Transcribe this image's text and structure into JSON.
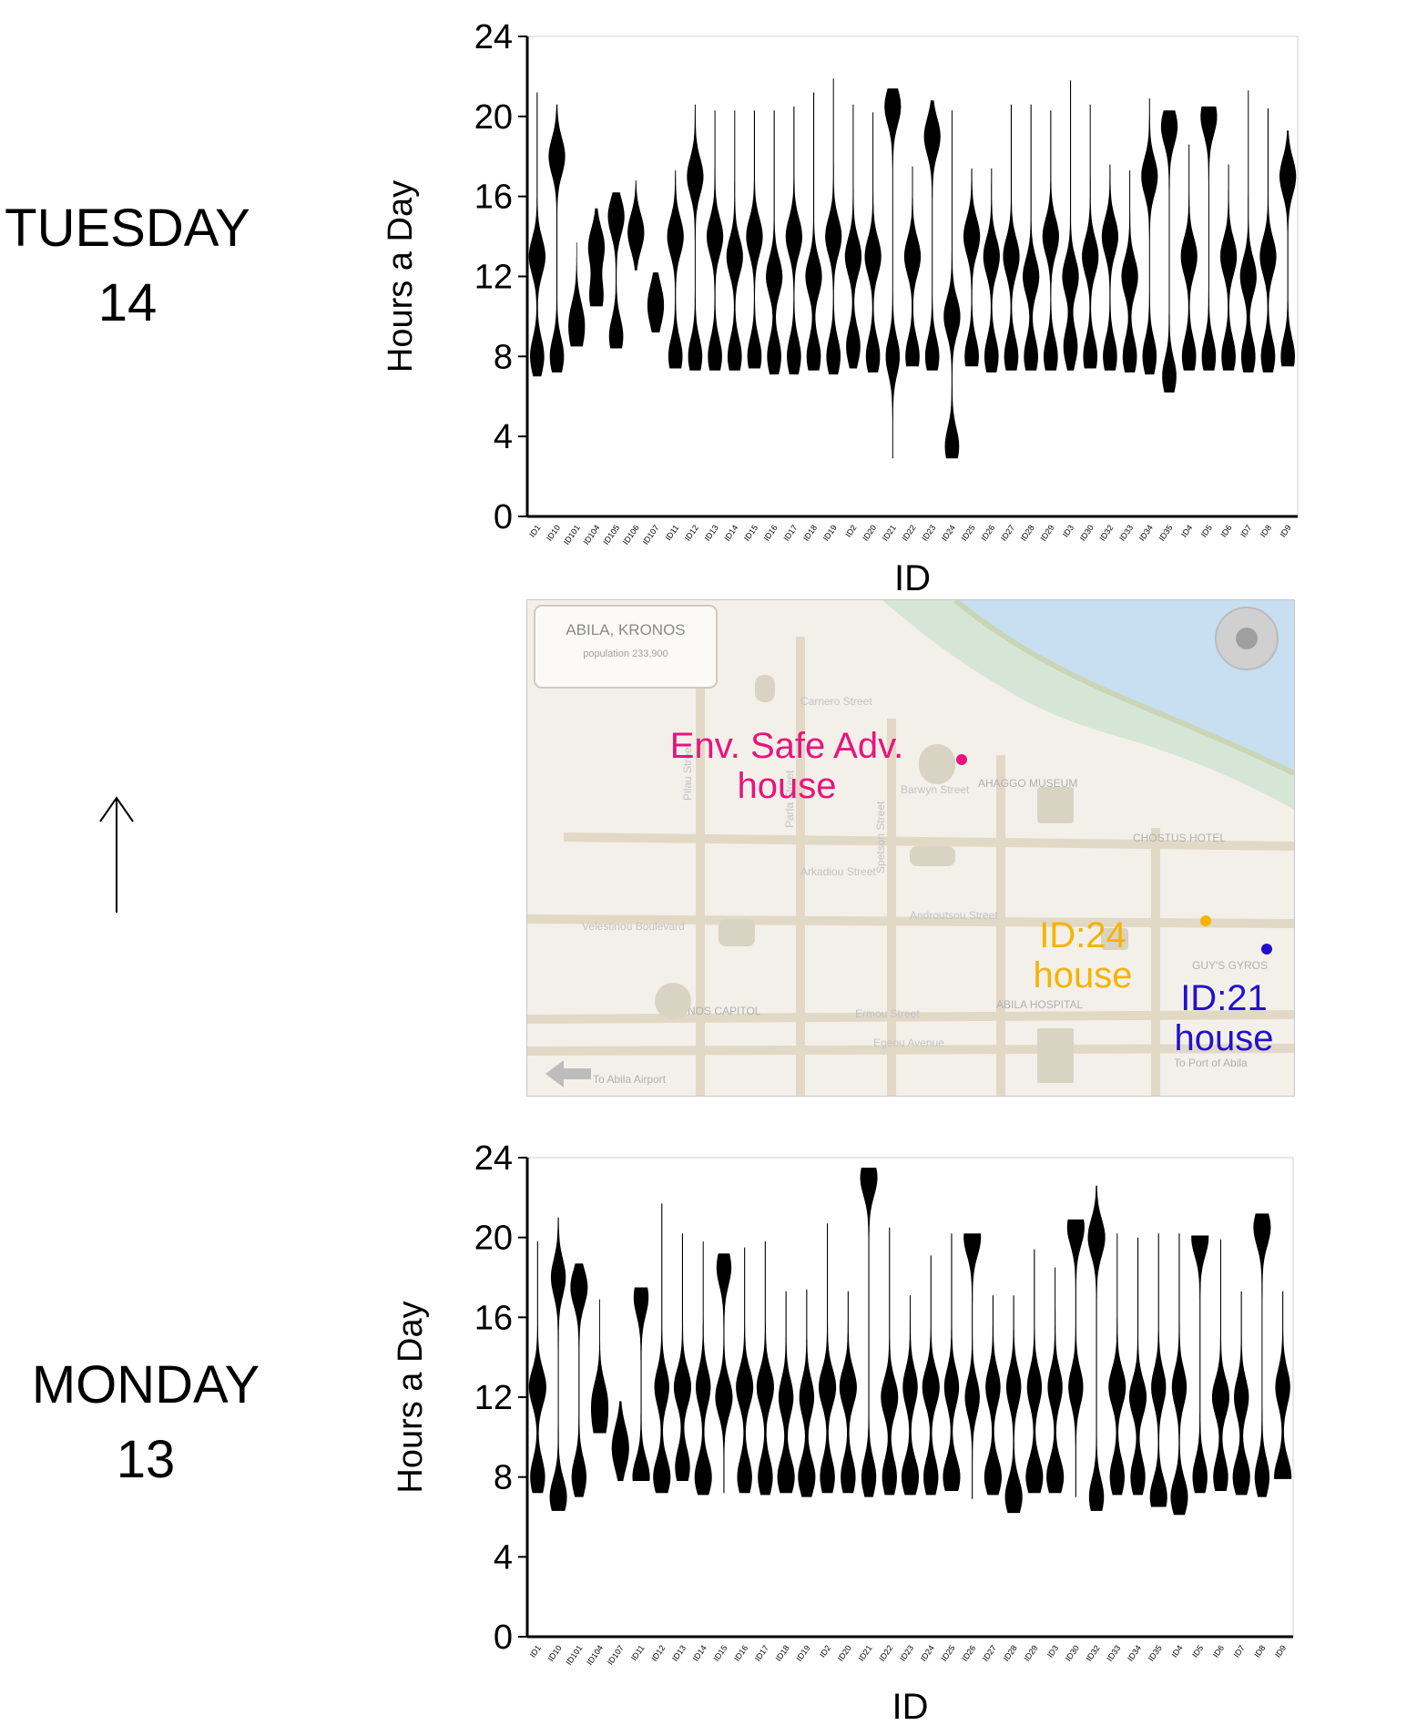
{
  "labels": {
    "tuesday": [
      "TUESDAY",
      "14"
    ],
    "monday": [
      "MONDAY",
      "13"
    ]
  },
  "map": {
    "title": "ABILA, KRONOS",
    "subtitle": "population 233,900",
    "streets": [
      "Barwyn Street",
      "Arkadiou Street",
      "Androutsou Street",
      "Velestinou Boulevard",
      "Ermou Street",
      "Egeou Avenue",
      "Pilau Street",
      "Parla Street",
      "Spetson Street",
      "Carnero Street"
    ],
    "places": [
      "AHAGGO MUSEUM",
      "CHOSTUS HOTEL",
      "GUY'S GYROS",
      "ABILA HOSPITAL",
      "KRONOS CAPITOL",
      "To Abila Airport",
      "To Port of Abila"
    ],
    "markers": [
      {
        "name": "env-safe",
        "lines": [
          "Env. Safe Adv.",
          "house"
        ],
        "color": "#e8147c"
      },
      {
        "name": "id24",
        "lines": [
          "ID:24",
          "house"
        ],
        "color": "#f5b400"
      },
      {
        "name": "id21",
        "lines": [
          "ID:21",
          "house"
        ],
        "color": "#2211cc"
      }
    ]
  },
  "chart_data": [
    {
      "type": "violin",
      "day": "TUESDAY 14",
      "xlabel": "ID",
      "ylabel": "Hours a Day",
      "ylim": [
        0,
        24
      ],
      "yticks": [
        0,
        4,
        8,
        12,
        16,
        20,
        24
      ],
      "categories": [
        "ID1",
        "ID10",
        "ID101",
        "ID104",
        "ID105",
        "ID106",
        "ID107",
        "ID11",
        "ID12",
        "ID13",
        "ID14",
        "ID15",
        "ID16",
        "ID17",
        "ID18",
        "ID19",
        "ID2",
        "ID20",
        "ID21",
        "ID22",
        "ID23",
        "ID24",
        "ID25",
        "ID26",
        "ID27",
        "ID28",
        "ID29",
        "ID3",
        "ID30",
        "ID32",
        "ID33",
        "ID34",
        "ID35",
        "ID4",
        "ID5",
        "ID6",
        "ID7",
        "ID8",
        "ID9"
      ],
      "ranges": [
        [
          7,
          21.2
        ],
        [
          7.2,
          20.6
        ],
        [
          8.5,
          13.7
        ],
        [
          10.5,
          15.4
        ],
        [
          8.4,
          16.2
        ],
        [
          12.3,
          16.8
        ],
        [
          9.2,
          12.2
        ],
        [
          7.4,
          17.3
        ],
        [
          7.3,
          20.6
        ],
        [
          7.3,
          20.3
        ],
        [
          7.3,
          20.3
        ],
        [
          7.4,
          20.3
        ],
        [
          7.1,
          20.3
        ],
        [
          7.1,
          20.5
        ],
        [
          7.3,
          21.2
        ],
        [
          7.1,
          21.9
        ],
        [
          7.4,
          20.6
        ],
        [
          7.2,
          20.2
        ],
        [
          2.9,
          21.4
        ],
        [
          7.5,
          17.5
        ],
        [
          7.3,
          20.8
        ],
        [
          2.9,
          20.3
        ],
        [
          7.5,
          17.4
        ],
        [
          7.2,
          17.4
        ],
        [
          7.3,
          20.6
        ],
        [
          7.3,
          20.6
        ],
        [
          7.3,
          20.3
        ],
        [
          7.3,
          21.8
        ],
        [
          7.4,
          20.6
        ],
        [
          7.3,
          17.6
        ],
        [
          7.2,
          17.3
        ],
        [
          7.1,
          20.9
        ],
        [
          6.2,
          20.3
        ],
        [
          7.3,
          18.6
        ],
        [
          7.3,
          20.5
        ],
        [
          7.3,
          17.6
        ],
        [
          7.2,
          21.3
        ],
        [
          7.2,
          20.4
        ],
        [
          7.5,
          19.3
        ]
      ],
      "peaks": [
        [
          13,
          8
        ],
        [
          18,
          8
        ],
        [
          10,
          8.8
        ],
        [
          13.5,
          11
        ],
        [
          15,
          9
        ],
        [
          14.2,
          14.2
        ],
        [
          11,
          10
        ],
        [
          14,
          8
        ],
        [
          17,
          8
        ],
        [
          14,
          8
        ],
        [
          13,
          8
        ],
        [
          14,
          8
        ],
        [
          12,
          8
        ],
        [
          14,
          8
        ],
        [
          12,
          8
        ],
        [
          14,
          8
        ],
        [
          13,
          8.5
        ],
        [
          13,
          8
        ],
        [
          20.5,
          8
        ],
        [
          13,
          8
        ],
        [
          19,
          8
        ],
        [
          10,
          3.5
        ],
        [
          14,
          8
        ],
        [
          13,
          8
        ],
        [
          13,
          8
        ],
        [
          12,
          8
        ],
        [
          14,
          8
        ],
        [
          12,
          8.5
        ],
        [
          13,
          8
        ],
        [
          14,
          8
        ],
        [
          12,
          8
        ],
        [
          17,
          8
        ],
        [
          19.5,
          7
        ],
        [
          13,
          8
        ],
        [
          20,
          8
        ],
        [
          13,
          8
        ],
        [
          12,
          8
        ],
        [
          13,
          8
        ],
        [
          17,
          8
        ]
      ]
    },
    {
      "type": "violin",
      "day": "MONDAY 13",
      "xlabel": "ID",
      "ylabel": "Hours a Day",
      "ylim": [
        0,
        24
      ],
      "yticks": [
        0,
        4,
        8,
        12,
        16,
        20,
        24
      ],
      "categories": [
        "ID1",
        "ID10",
        "ID101",
        "ID104",
        "ID107",
        "ID11",
        "ID12",
        "ID13",
        "ID14",
        "ID15",
        "ID16",
        "ID17",
        "ID18",
        "ID19",
        "ID2",
        "ID20",
        "ID21",
        "ID22",
        "ID23",
        "ID24",
        "ID25",
        "ID26",
        "ID27",
        "ID28",
        "ID29",
        "ID3",
        "ID30",
        "ID32",
        "ID33",
        "ID34",
        "ID35",
        "ID4",
        "ID5",
        "ID6",
        "ID7",
        "ID8",
        "ID9"
      ],
      "ranges": [
        [
          7.2,
          19.8
        ],
        [
          6.3,
          21
        ],
        [
          7,
          18.7
        ],
        [
          10.2,
          16.9
        ],
        [
          7.8,
          11.8
        ],
        [
          7.8,
          17.5
        ],
        [
          7.2,
          21.7
        ],
        [
          7.8,
          20.2
        ],
        [
          7.1,
          19.8
        ],
        [
          7.2,
          19.2
        ],
        [
          7.2,
          19.5
        ],
        [
          7.1,
          19.8
        ],
        [
          7.2,
          17.3
        ],
        [
          7,
          17.4
        ],
        [
          7.2,
          20.7
        ],
        [
          7.2,
          17.3
        ],
        [
          7,
          23.5
        ],
        [
          7.1,
          20.5
        ],
        [
          7.1,
          17.1
        ],
        [
          7.1,
          19.1
        ],
        [
          7.3,
          20.2
        ],
        [
          6.9,
          20.2
        ],
        [
          7.1,
          17.1
        ],
        [
          6.2,
          17.1
        ],
        [
          7.2,
          19.4
        ],
        [
          7.2,
          18.5
        ],
        [
          7,
          20.9
        ],
        [
          6.3,
          22.6
        ],
        [
          7.1,
          20.2
        ],
        [
          7.1,
          20
        ],
        [
          6.5,
          20.2
        ],
        [
          6.1,
          20.2
        ],
        [
          7.2,
          20.1
        ],
        [
          7.3,
          19.9
        ],
        [
          7.1,
          17.3
        ],
        [
          7,
          21.2
        ],
        [
          7.9,
          17.3
        ]
      ],
      "peaks": [
        [
          12.5,
          8
        ],
        [
          7,
          18
        ],
        [
          17.5,
          8
        ],
        [
          12,
          10.5
        ],
        [
          9,
          10
        ],
        [
          8,
          17
        ],
        [
          8,
          12.5
        ],
        [
          12.5,
          8.5
        ],
        [
          8,
          12.5
        ],
        [
          12,
          18.5
        ],
        [
          12.5,
          8
        ],
        [
          12.5,
          8
        ],
        [
          8,
          12
        ],
        [
          8,
          12
        ],
        [
          12.5,
          8
        ],
        [
          12.5,
          8
        ],
        [
          23,
          8
        ],
        [
          12,
          8
        ],
        [
          8,
          12.5
        ],
        [
          12.5,
          8
        ],
        [
          8,
          12.5
        ],
        [
          20,
          12
        ],
        [
          8,
          12.5
        ],
        [
          7,
          12.5
        ],
        [
          8,
          12.5
        ],
        [
          8,
          12.5
        ],
        [
          20.5,
          12.5
        ],
        [
          20,
          7
        ],
        [
          12.5,
          8
        ],
        [
          12,
          8
        ],
        [
          7,
          12.5
        ],
        [
          7,
          12.5
        ],
        [
          20,
          8
        ],
        [
          12,
          8
        ],
        [
          8,
          12
        ],
        [
          20.5,
          8
        ],
        [
          8,
          12.5
        ]
      ]
    }
  ]
}
